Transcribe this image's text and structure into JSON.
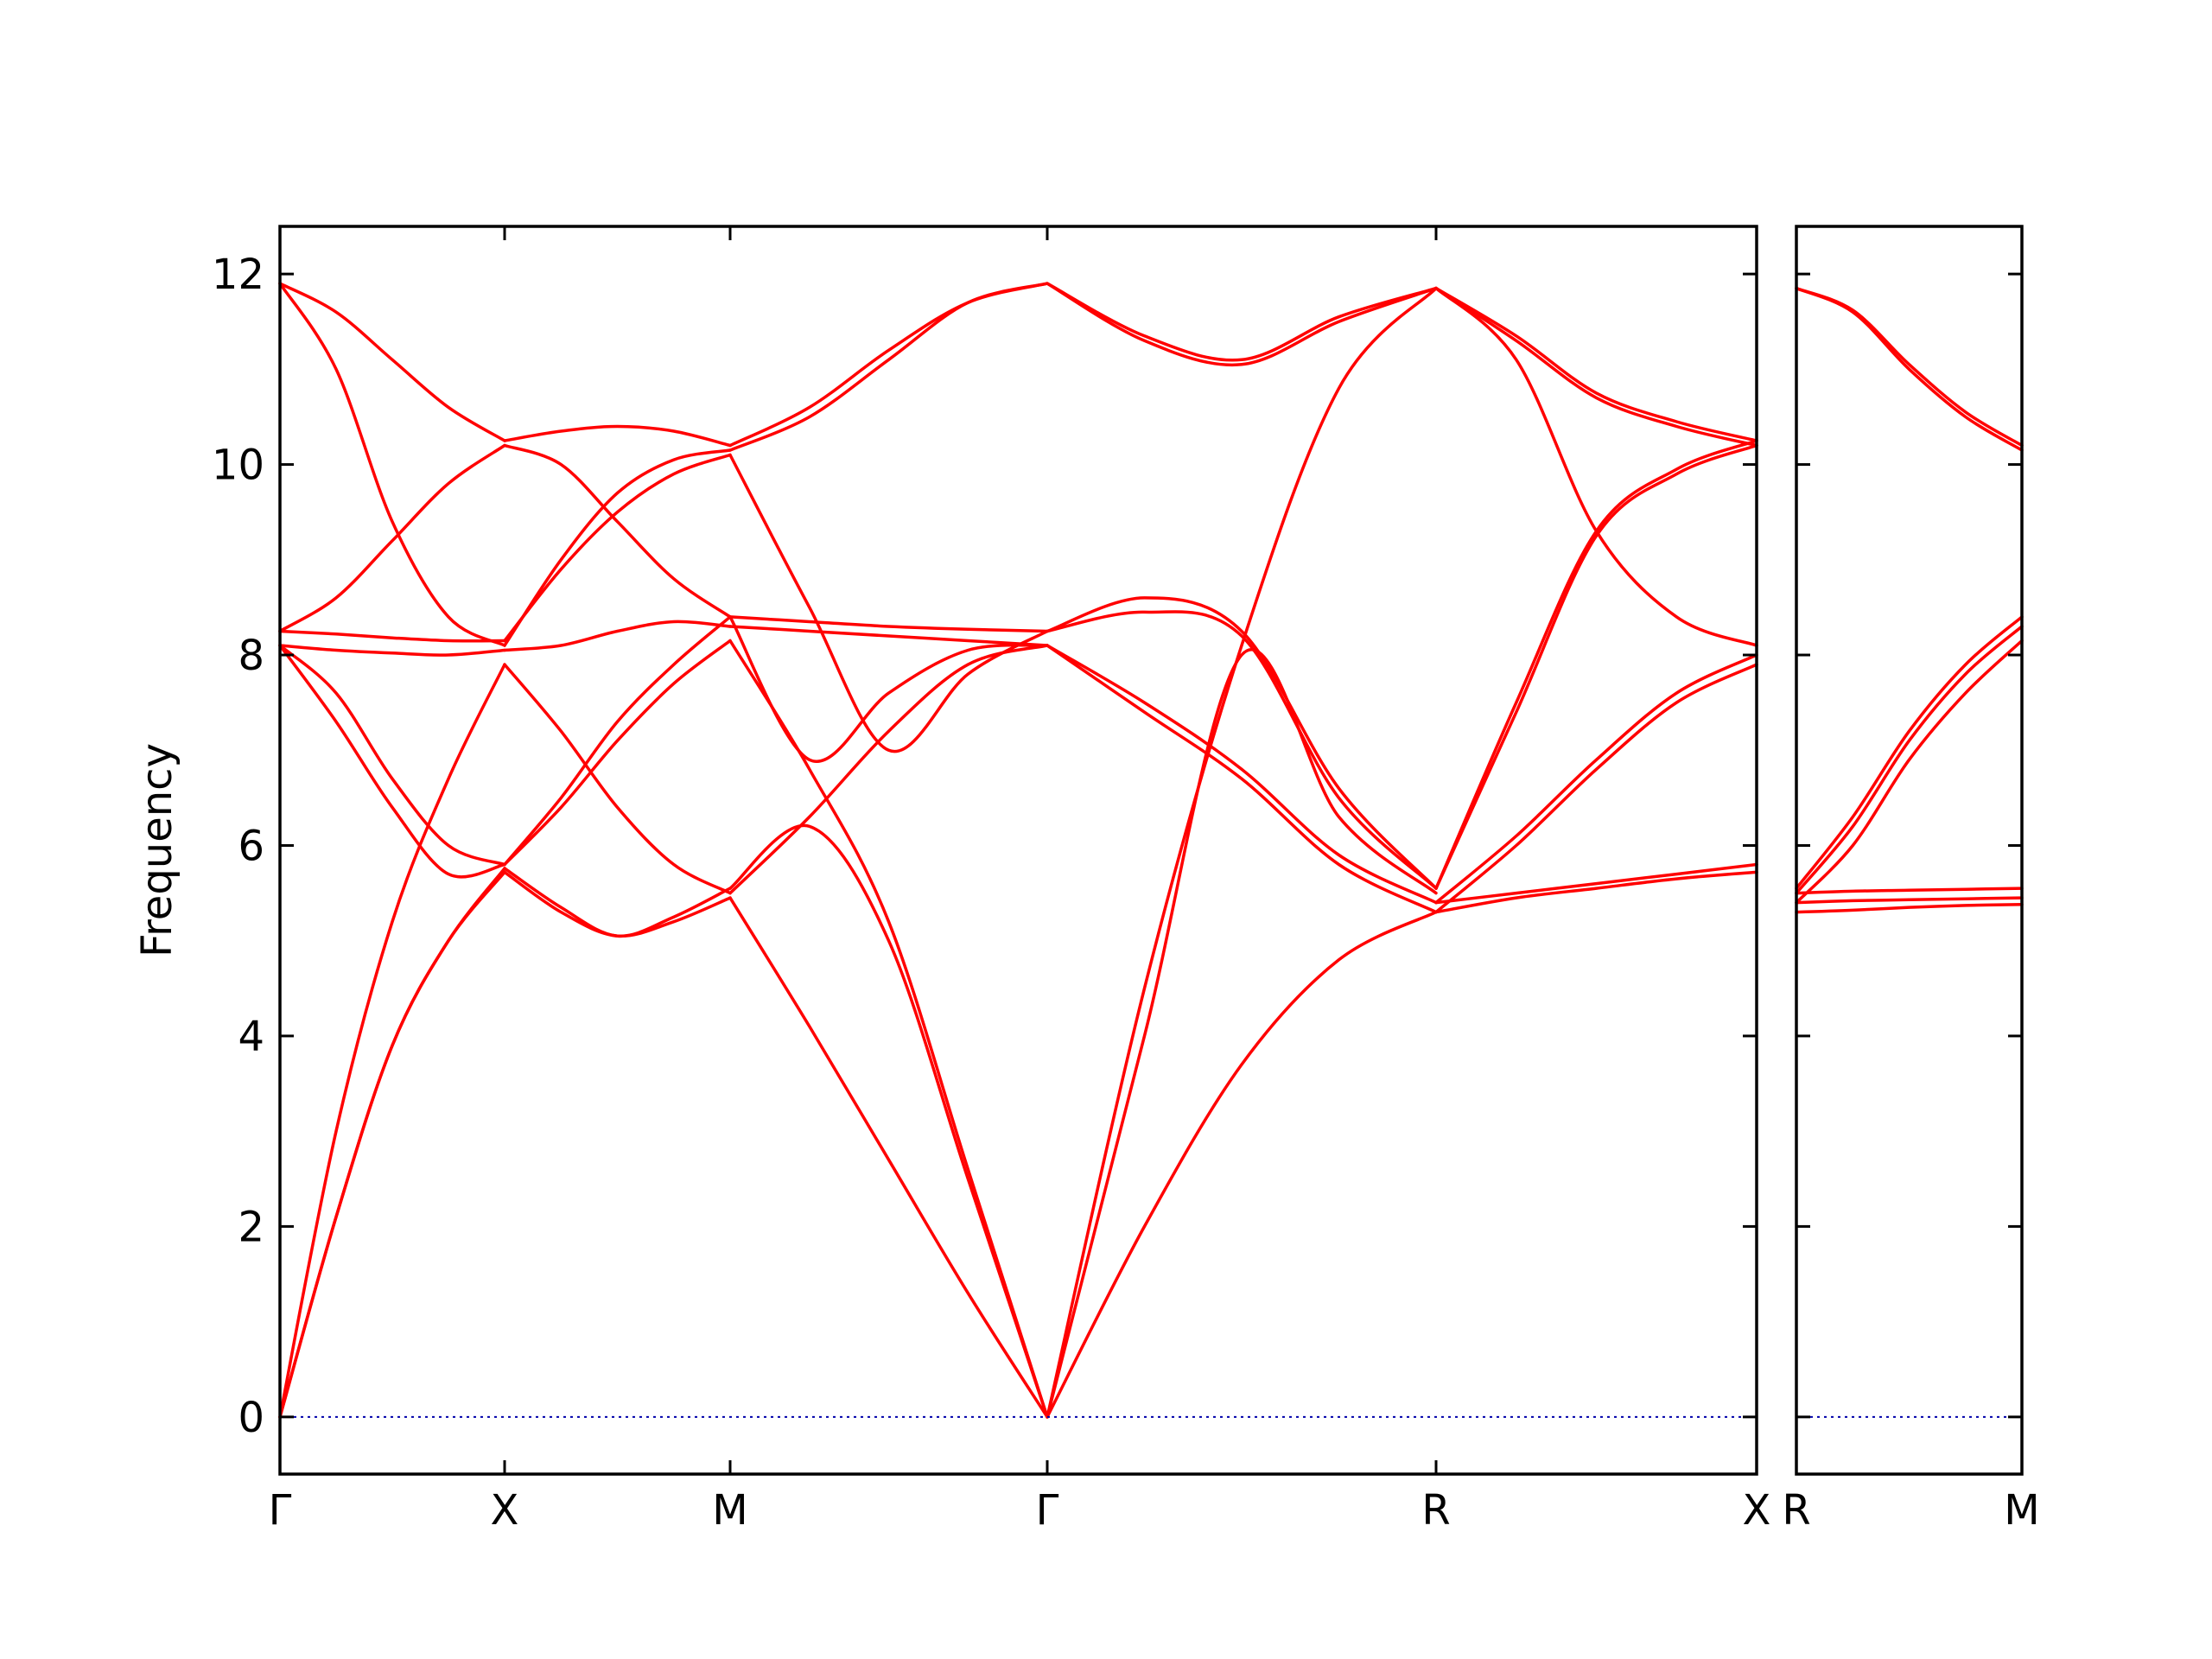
{
  "chart_data": {
    "type": "line",
    "ylabel": "Frequency",
    "ylim": [
      -0.6,
      12.5
    ],
    "yticks": [
      0,
      2,
      4,
      6,
      8,
      10,
      12
    ],
    "ytick_labels": [
      "0",
      "2",
      "4",
      "6",
      "8",
      "10",
      "12"
    ],
    "grid": false,
    "legend": "none",
    "colors": {
      "bands": "#ff0000",
      "zero_line": "#0000aa",
      "axes": "#000000"
    },
    "segments": [
      {
        "from": "Γ",
        "to": "X",
        "x": [
          0,
          0.25,
          0.5,
          0.75,
          1
        ],
        "bands": [
          [
            0,
            2.1,
            3.9,
            5.0,
            5.72
          ],
          [
            0,
            2.1,
            3.9,
            5.0,
            5.76
          ],
          [
            0,
            3.0,
            5.2,
            6.7,
            7.9
          ],
          [
            8.1,
            7.3,
            6.4,
            5.7,
            5.8
          ],
          [
            8.1,
            7.6,
            6.7,
            6.0,
            5.8
          ],
          [
            8.1,
            8.05,
            8.02,
            8.0,
            8.05
          ],
          [
            8.25,
            8.22,
            8.18,
            8.15,
            8.15
          ],
          [
            8.25,
            8.6,
            9.2,
            9.8,
            10.2
          ],
          [
            11.9,
            11.0,
            9.4,
            8.4,
            8.1
          ],
          [
            11.9,
            11.6,
            11.1,
            10.6,
            10.25
          ]
        ]
      },
      {
        "from": "X",
        "to": "M",
        "x": [
          0,
          0.25,
          0.5,
          0.75,
          1
        ],
        "bands": [
          [
            5.72,
            5.3,
            5.05,
            5.2,
            5.45
          ],
          [
            5.76,
            5.35,
            5.05,
            5.25,
            5.55
          ],
          [
            7.9,
            7.2,
            6.4,
            5.8,
            5.5
          ],
          [
            5.8,
            6.4,
            7.1,
            7.7,
            8.15
          ],
          [
            5.8,
            6.5,
            7.3,
            7.9,
            8.4
          ],
          [
            8.05,
            8.1,
            8.25,
            8.35,
            8.3
          ],
          [
            8.15,
            8.9,
            9.5,
            9.9,
            10.1
          ],
          [
            10.2,
            10.0,
            9.4,
            8.8,
            8.4
          ],
          [
            8.1,
            9.0,
            9.7,
            10.05,
            10.15
          ],
          [
            10.25,
            10.35,
            10.4,
            10.35,
            10.2
          ]
        ]
      },
      {
        "from": "M",
        "to": "Γ",
        "x": [
          0,
          0.25,
          0.5,
          0.75,
          1
        ],
        "bands": [
          [
            5.45,
            4.1,
            2.7,
            1.3,
            0
          ],
          [
            5.55,
            6.2,
            5.0,
            2.5,
            0
          ],
          [
            5.5,
            6.3,
            7.2,
            7.9,
            8.1
          ],
          [
            8.15,
            6.8,
            5.2,
            2.6,
            0
          ],
          [
            8.4,
            6.9,
            7.6,
            8.05,
            8.1
          ],
          [
            8.3,
            8.25,
            8.2,
            8.15,
            8.1
          ],
          [
            8.4,
            8.35,
            8.3,
            8.27,
            8.25
          ],
          [
            10.1,
            8.5,
            7.0,
            7.8,
            8.25
          ],
          [
            10.15,
            10.5,
            11.1,
            11.7,
            11.9
          ],
          [
            10.2,
            10.6,
            11.2,
            11.7,
            11.9
          ]
        ]
      },
      {
        "from": "Γ",
        "to": "R",
        "x": [
          0,
          0.25,
          0.5,
          0.75,
          1
        ],
        "bands": [
          [
            0,
            2.0,
            3.7,
            4.8,
            5.3
          ],
          [
            0,
            4.5,
            8.1,
            10.8,
            11.85
          ],
          [
            0,
            4.0,
            8.0,
            6.3,
            5.5
          ],
          [
            8.1,
            7.4,
            6.7,
            5.8,
            5.3
          ],
          [
            8.1,
            7.5,
            6.8,
            5.9,
            5.4
          ],
          [
            8.25,
            8.45,
            8.2,
            6.5,
            5.55
          ],
          [
            8.25,
            8.6,
            8.25,
            6.6,
            5.55
          ],
          [
            11.9,
            11.3,
            11.05,
            11.5,
            11.85
          ],
          [
            11.9,
            11.35,
            11.1,
            11.55,
            11.85
          ]
        ]
      },
      {
        "from": "R",
        "to": "X",
        "x": [
          0,
          0.25,
          0.5,
          0.75,
          1
        ],
        "bands": [
          [
            5.3,
            5.45,
            5.55,
            5.65,
            5.72
          ],
          [
            5.4,
            5.5,
            5.6,
            5.7,
            5.8
          ],
          [
            5.3,
            6.0,
            6.8,
            7.5,
            7.9
          ],
          [
            5.4,
            6.1,
            6.9,
            7.6,
            8.0
          ],
          [
            5.55,
            7.4,
            9.25,
            9.9,
            10.2
          ],
          [
            5.55,
            7.5,
            9.3,
            9.95,
            10.25
          ],
          [
            11.85,
            11.1,
            9.3,
            8.4,
            8.1
          ],
          [
            11.85,
            11.3,
            10.7,
            10.4,
            10.2
          ],
          [
            11.85,
            11.35,
            10.75,
            10.45,
            10.25
          ]
        ]
      },
      {
        "from": "R",
        "to": "M",
        "x": [
          0,
          0.25,
          0.5,
          0.75,
          1
        ],
        "bands": [
          [
            5.3,
            5.32,
            5.35,
            5.37,
            5.38
          ],
          [
            5.4,
            5.42,
            5.43,
            5.44,
            5.45
          ],
          [
            5.5,
            5.52,
            5.53,
            5.54,
            5.55
          ],
          [
            5.4,
            6.0,
            6.9,
            7.6,
            8.15
          ],
          [
            5.5,
            6.2,
            7.1,
            7.8,
            8.3
          ],
          [
            5.55,
            6.3,
            7.2,
            7.9,
            8.4
          ],
          [
            11.85,
            11.6,
            11.0,
            10.5,
            10.15
          ],
          [
            11.85,
            11.62,
            11.05,
            10.55,
            10.2
          ]
        ]
      }
    ],
    "panels": [
      {
        "ticks": [
          "Γ",
          "X",
          "M",
          "Γ",
          "R",
          "X"
        ]
      },
      {
        "ticks": [
          "R",
          "M"
        ]
      }
    ]
  }
}
